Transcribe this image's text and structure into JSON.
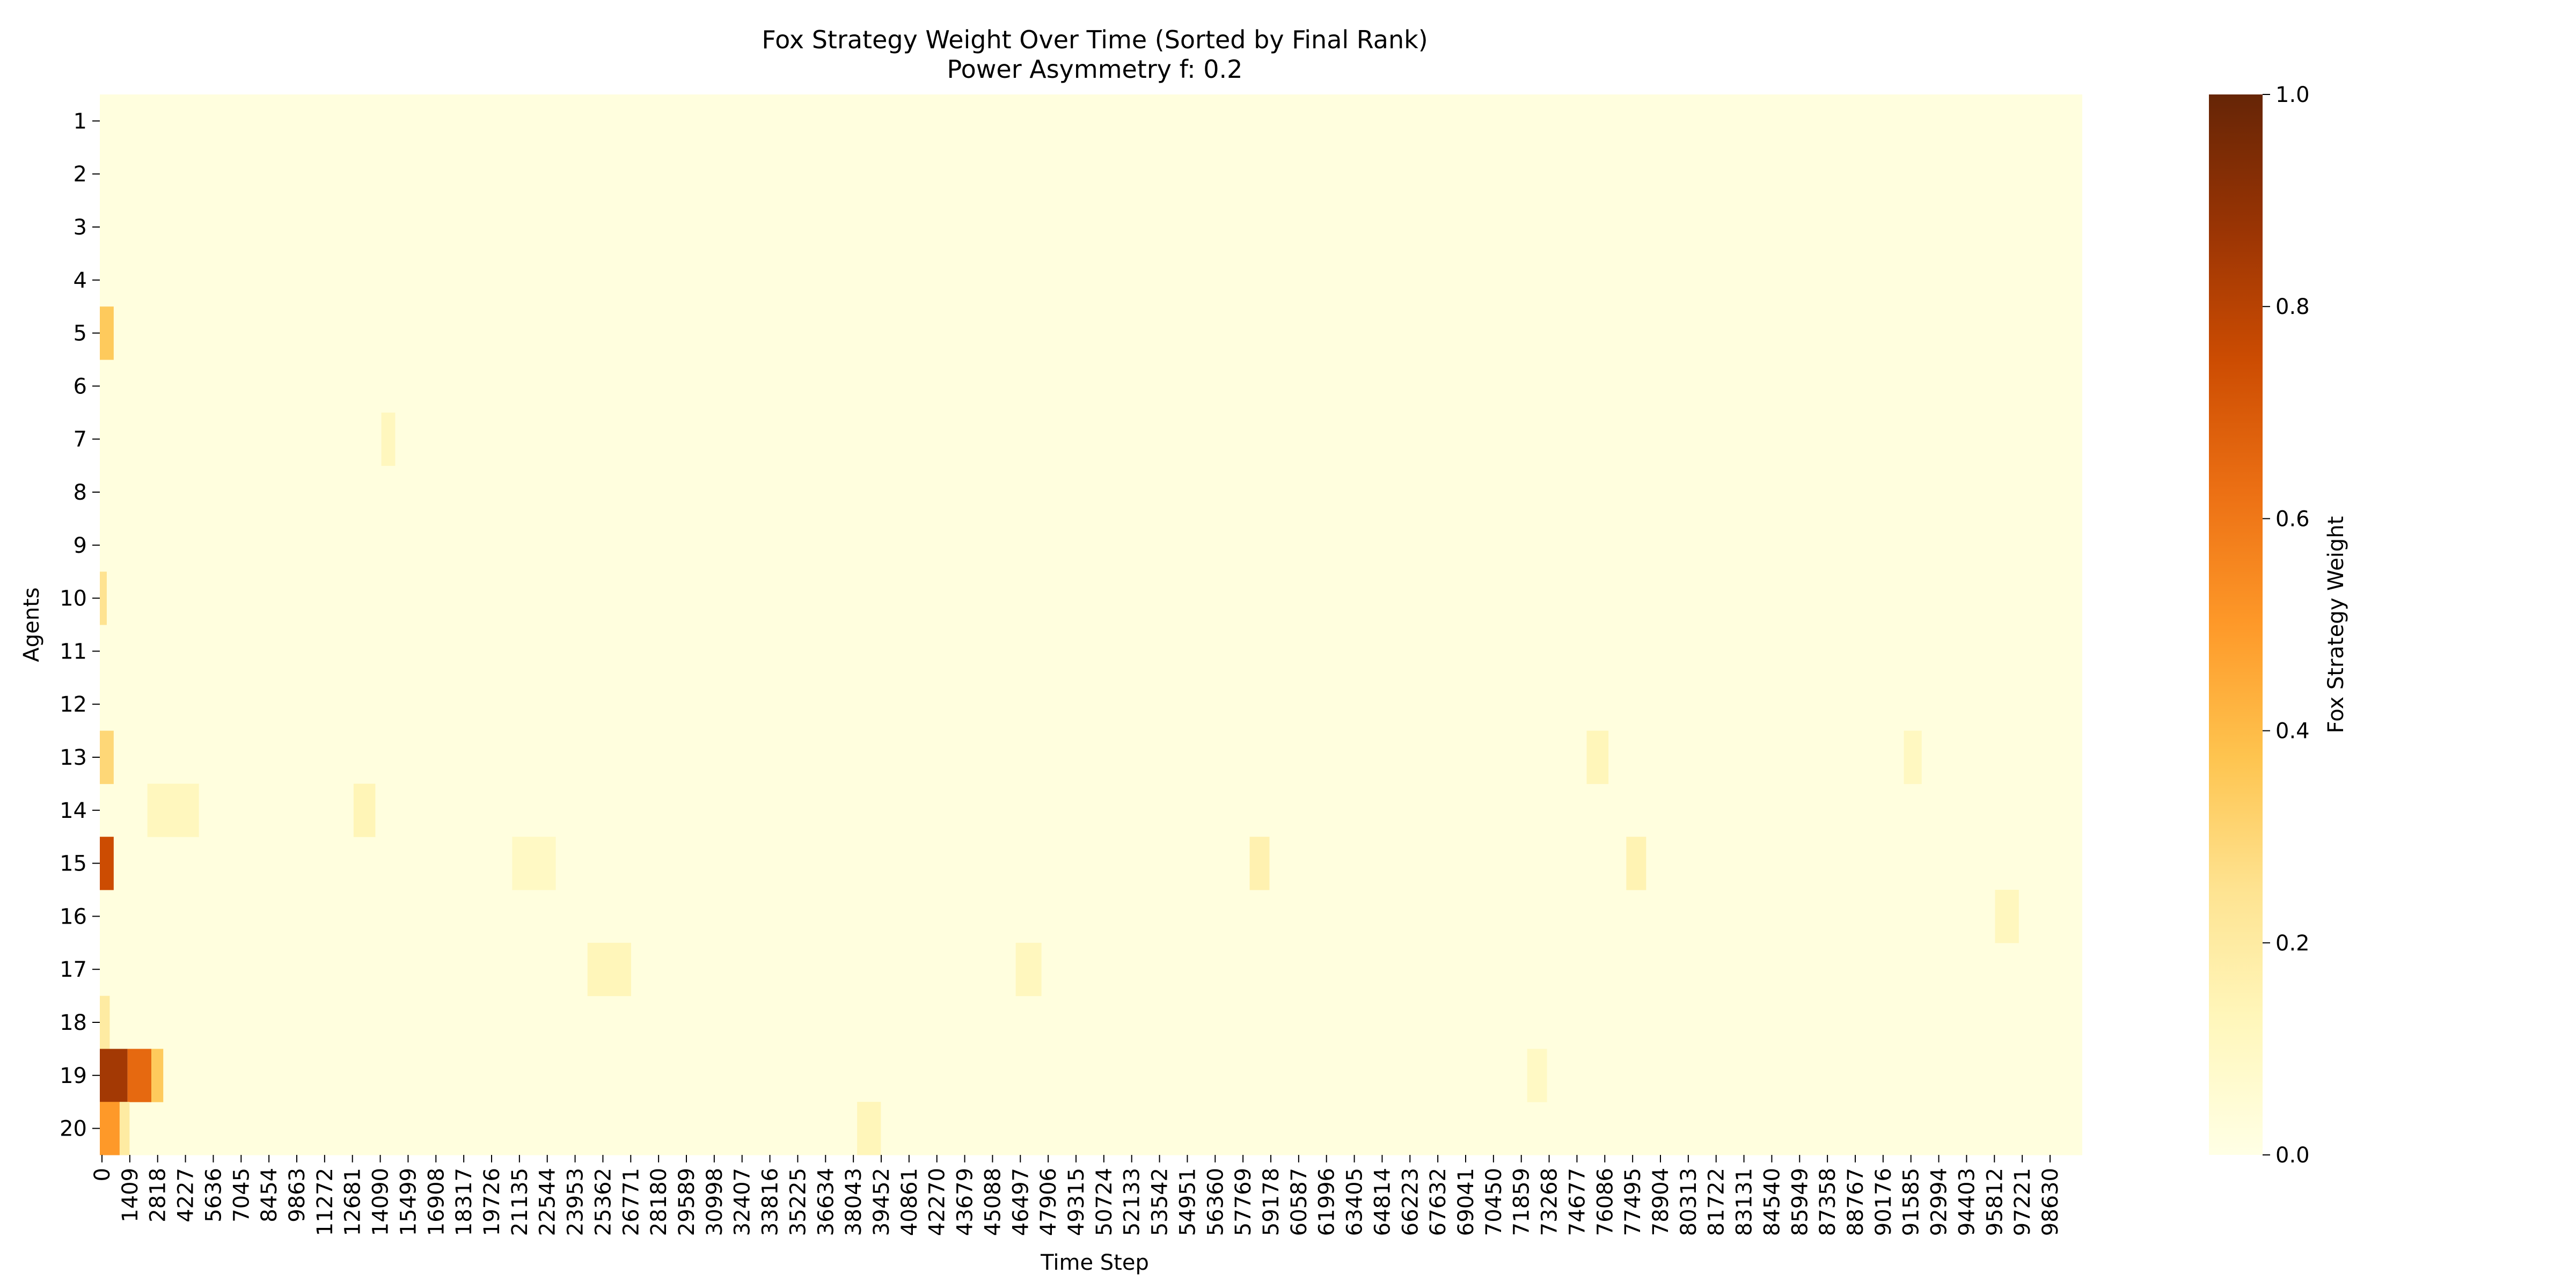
{
  "chart_data": {
    "type": "heatmap",
    "title": "Fox Strategy Weight Over Time (Sorted by Final Rank)",
    "subtitle": "Power Asymmetry f: 0.2",
    "xlabel": "Time Step",
    "ylabel": "Agents",
    "colorbar_label": "Fox Strategy Weight",
    "color_range": [
      0.0,
      1.0
    ],
    "colorbar_ticks": [
      "0.0",
      "0.2",
      "0.4",
      "0.6",
      "0.8",
      "1.0"
    ],
    "colormap": [
      "#ffffe5",
      "#fff7bc",
      "#fee391",
      "#fec44f",
      "#fe9929",
      "#ec7014",
      "#cc4c02",
      "#993404",
      "#662506"
    ],
    "rows": [
      "1",
      "2",
      "3",
      "4",
      "5",
      "6",
      "7",
      "8",
      "9",
      "10",
      "11",
      "12",
      "13",
      "14",
      "15",
      "16",
      "17",
      "18",
      "19",
      "20"
    ],
    "x_ticks": [
      "0",
      "1409",
      "2818",
      "4227",
      "5636",
      "7045",
      "8454",
      "9863",
      "11272",
      "12681",
      "14090",
      "15499",
      "16908",
      "18317",
      "19726",
      "21135",
      "22544",
      "23953",
      "25362",
      "26771",
      "28180",
      "29589",
      "30998",
      "32407",
      "33816",
      "35225",
      "36634",
      "38043",
      "39452",
      "40861",
      "42270",
      "43679",
      "45088",
      "46497",
      "47906",
      "49315",
      "50724",
      "52133",
      "53542",
      "54951",
      "56360",
      "57769",
      "59178",
      "60587",
      "61996",
      "63405",
      "64814",
      "66223",
      "67632",
      "69041",
      "70450",
      "71859",
      "73268",
      "74677",
      "76086",
      "77495",
      "78904",
      "80313",
      "81722",
      "83131",
      "84540",
      "85949",
      "87358",
      "88767",
      "90176",
      "91585",
      "92994",
      "94403",
      "95812",
      "97221",
      "98630"
    ],
    "x_range": [
      0,
      100000
    ],
    "background_value": 0.02,
    "highlights": [
      {
        "agent": 5,
        "x0": 0,
        "x1": 700,
        "value": 0.35
      },
      {
        "agent": 10,
        "x0": 0,
        "x1": 350,
        "value": 0.25
      },
      {
        "agent": 13,
        "x0": 0,
        "x1": 700,
        "value": 0.3
      },
      {
        "agent": 15,
        "x0": 0,
        "x1": 700,
        "value": 0.75
      },
      {
        "agent": 18,
        "x0": 0,
        "x1": 500,
        "value": 0.2
      },
      {
        "agent": 19,
        "x0": 0,
        "x1": 1400,
        "value": 0.85
      },
      {
        "agent": 19,
        "x0": 1400,
        "x1": 2600,
        "value": 0.65
      },
      {
        "agent": 19,
        "x0": 2600,
        "x1": 3200,
        "value": 0.35
      },
      {
        "agent": 20,
        "x0": 0,
        "x1": 1000,
        "value": 0.5
      },
      {
        "agent": 20,
        "x0": 1000,
        "x1": 1500,
        "value": 0.2
      },
      {
        "agent": 14,
        "x0": 2400,
        "x1": 5000,
        "value": 0.12
      },
      {
        "agent": 14,
        "x0": 12800,
        "x1": 13900,
        "value": 0.14
      },
      {
        "agent": 7,
        "x0": 14200,
        "x1": 14900,
        "value": 0.12
      },
      {
        "agent": 17,
        "x0": 24600,
        "x1": 26800,
        "value": 0.13
      },
      {
        "agent": 15,
        "x0": 20800,
        "x1": 23000,
        "value": 0.1
      },
      {
        "agent": 20,
        "x0": 38200,
        "x1": 39400,
        "value": 0.13
      },
      {
        "agent": 17,
        "x0": 46200,
        "x1": 47500,
        "value": 0.12
      },
      {
        "agent": 15,
        "x0": 58000,
        "x1": 59000,
        "value": 0.16
      },
      {
        "agent": 13,
        "x0": 75000,
        "x1": 76100,
        "value": 0.13
      },
      {
        "agent": 15,
        "x0": 77000,
        "x1": 78000,
        "value": 0.15
      },
      {
        "agent": 16,
        "x0": 95600,
        "x1": 96800,
        "value": 0.12
      },
      {
        "agent": 19,
        "x0": 72000,
        "x1": 73000,
        "value": 0.1
      },
      {
        "agent": 13,
        "x0": 91000,
        "x1": 91900,
        "value": 0.11
      }
    ]
  }
}
